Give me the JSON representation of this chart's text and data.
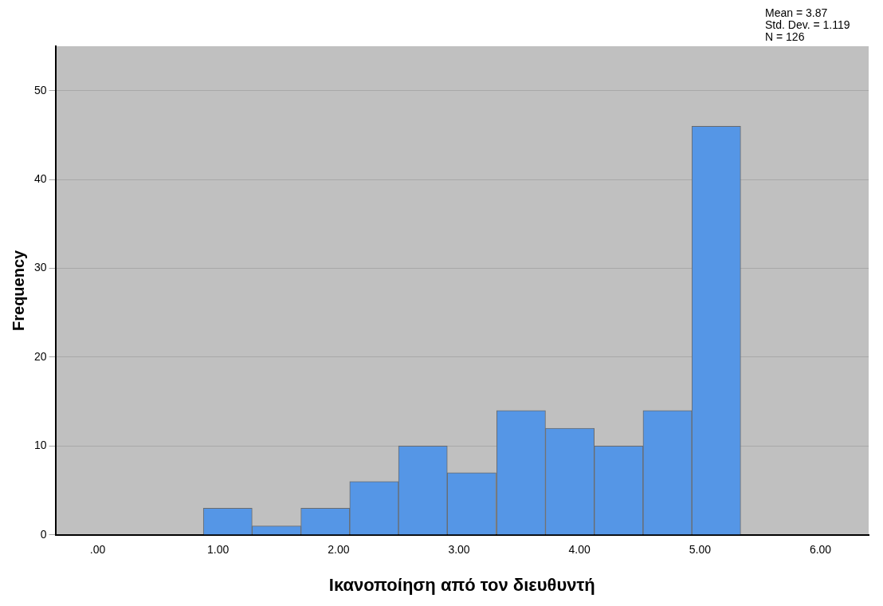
{
  "chart_data": {
    "type": "histogram",
    "xlabel": "Ικανοποίηση από τον διευθυντή",
    "ylabel": "Frequency",
    "annotations": [
      "Mean = 3.87",
      "Std. Dev. = 1.119",
      "N = 126"
    ],
    "bins": [
      0.88,
      1.28,
      1.69,
      2.09,
      2.5,
      2.9,
      3.31,
      3.72,
      4.12,
      4.53,
      4.93,
      5.34
    ],
    "values": [
      3,
      1,
      3,
      6,
      10,
      7,
      14,
      12,
      10,
      14,
      46
    ],
    "color": "#5596e6",
    "xlim": [
      -0.35,
      6.4
    ],
    "xticks": [
      {
        "value": 0,
        "label": ".00"
      },
      {
        "value": 1,
        "label": "1.00"
      },
      {
        "value": 2,
        "label": "2.00"
      },
      {
        "value": 3,
        "label": "3.00"
      },
      {
        "value": 4,
        "label": "4.00"
      },
      {
        "value": 5,
        "label": "5.00"
      },
      {
        "value": 6,
        "label": "6.00"
      }
    ],
    "ylim": [
      0,
      55
    ],
    "yticks": [
      0,
      10,
      20,
      30,
      40,
      50
    ],
    "grid": "y"
  }
}
